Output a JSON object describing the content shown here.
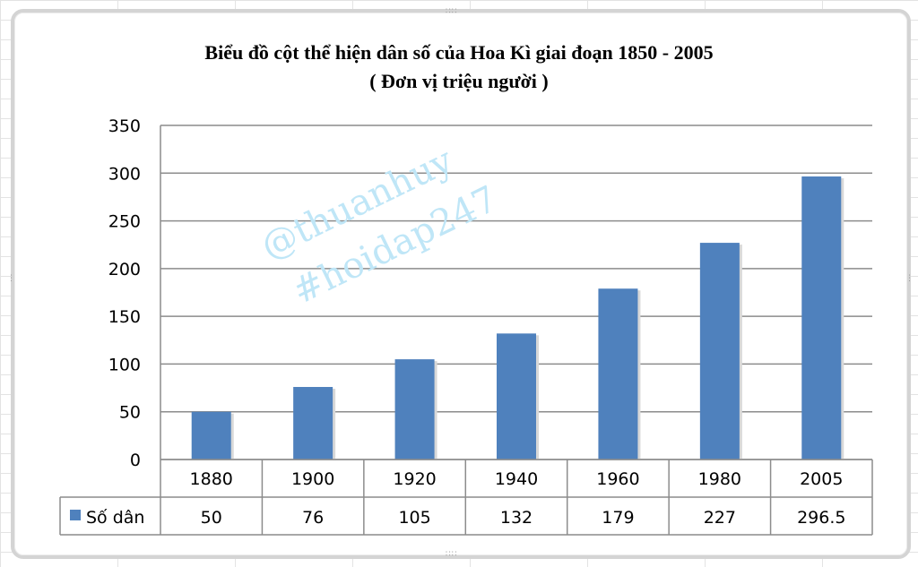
{
  "chart_data": {
    "type": "bar",
    "title": "Biểu đồ  cột thể hiện dân  số của Hoa  Kì giai đoạn  1850 - 2005",
    "subtitle": "( Đơn vị triệu người )",
    "categories": [
      "1880",
      "1900",
      "1920",
      "1940",
      "1960",
      "1980",
      "2005"
    ],
    "series": [
      {
        "name": "Số dân",
        "values": [
          50,
          76,
          105,
          132,
          179,
          227,
          296.5
        ],
        "color": "#4f81bd"
      }
    ],
    "table_values": [
      "50",
      "76",
      "105",
      "132",
      "179",
      "227",
      "296.5"
    ],
    "yticks": [
      "0",
      "50",
      "100",
      "150",
      "200",
      "250",
      "300",
      "350"
    ],
    "ylim": [
      0,
      350
    ],
    "grid": true,
    "legend": "data-table-left"
  },
  "watermark": {
    "line1": "@thuanhuy",
    "line2": "#hoidap247"
  },
  "colors": {
    "bar": "#4f81bd",
    "grid": "#8c8c8c",
    "watermark": "#bfe6f7"
  }
}
